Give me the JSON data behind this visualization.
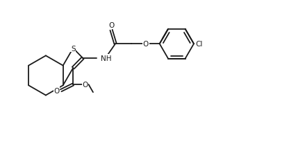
{
  "bg": "#ffffff",
  "lc": "#1a1a1a",
  "lw": 1.3,
  "fs": 7.5,
  "figsize": [
    4.26,
    2.28
  ],
  "dpi": 100,
  "xlim": [
    0.0,
    10.5
  ],
  "ylim": [
    0.5,
    6.2
  ]
}
